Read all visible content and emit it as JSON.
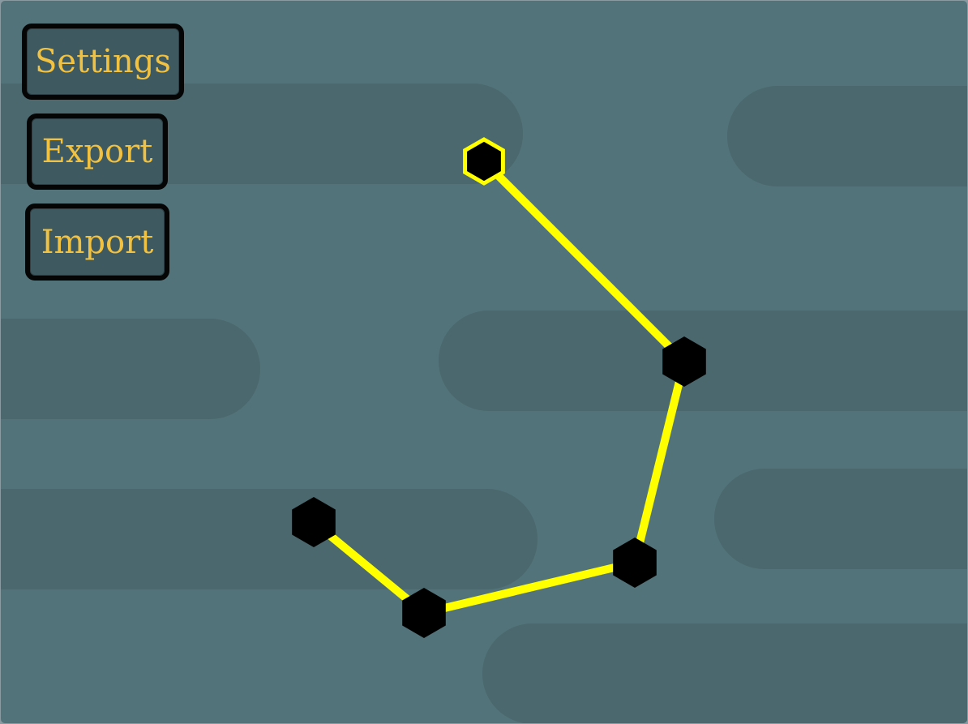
{
  "menu": {
    "settings_label": "Settings",
    "export_label": "Export",
    "import_label": "Import"
  },
  "colors": {
    "background": "#517379",
    "band": "#4a686d",
    "button_fill": "#3e5960",
    "button_border": "#050505",
    "button_text": "#f1c141",
    "edge": "#ffff00",
    "node": "#000000",
    "selected_outline": "#ffff00"
  },
  "graph": {
    "node_shape": "hexagon-icon",
    "selected_node": 0,
    "edges": [
      [
        0,
        1
      ],
      [
        1,
        2
      ],
      [
        2,
        3
      ],
      [
        3,
        4
      ]
    ]
  }
}
